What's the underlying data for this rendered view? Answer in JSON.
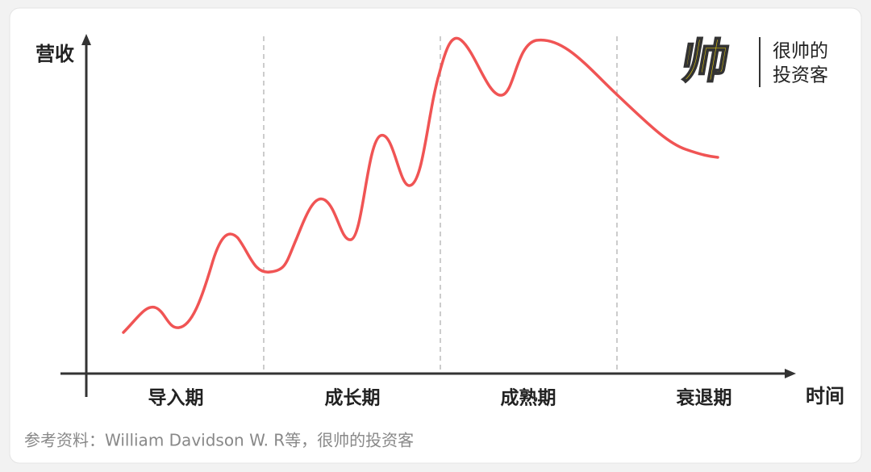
{
  "logo": {
    "mark": "帅",
    "line1": "很帅的",
    "line2": "投资客"
  },
  "diagram": {
    "y_axis_label": "营收",
    "x_axis_label": "时间",
    "stages": [
      "导入期",
      "成长期",
      "成熟期",
      "衰退期"
    ]
  },
  "source": "参考资料：William Davidson W. R等，很帅的投资客"
}
